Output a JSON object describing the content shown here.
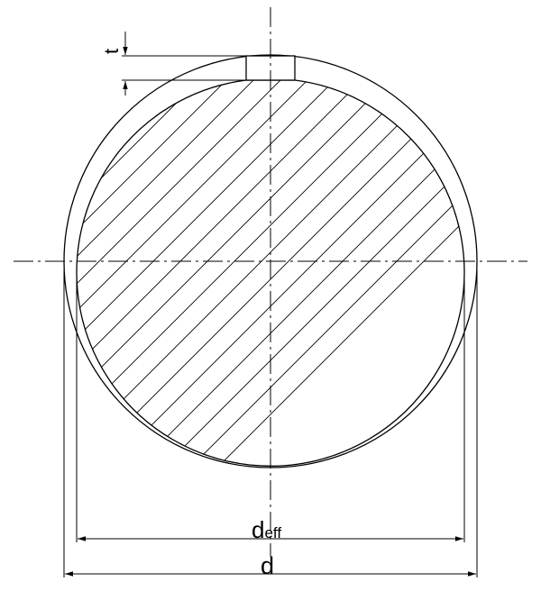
{
  "labels": {
    "t": "t",
    "d_eff_main": "d",
    "d_eff_sub": "eff",
    "d": "d"
  },
  "colors": {
    "stroke": "#000000",
    "background": "#ffffff"
  }
}
